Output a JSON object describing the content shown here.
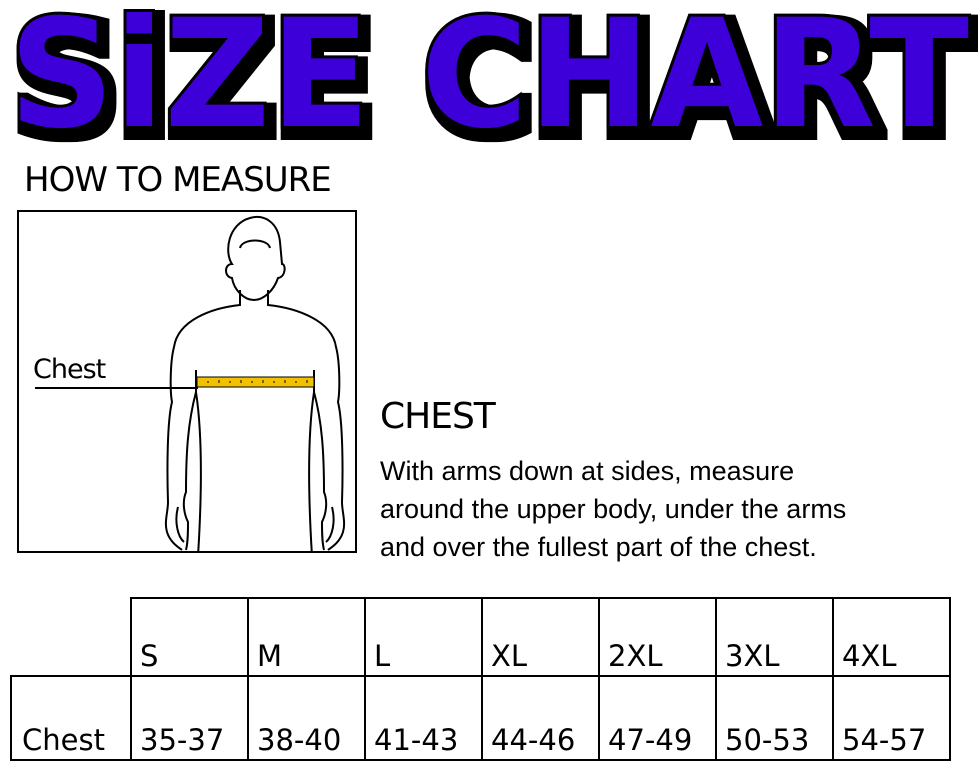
{
  "title": "SiZE CHART",
  "colors": {
    "title_fill": "#3d00d9",
    "title_outline": "#000000",
    "tape": "#f2c200"
  },
  "how_to_measure": "HOW TO MEASURE",
  "figure": {
    "label": "Chest"
  },
  "chest": {
    "heading": "CHEST",
    "description_lines": [
      "With arms down at sides, measure",
      "around the upper body, under the arms",
      "and over the fullest part of the chest."
    ]
  },
  "table": {
    "sizes": [
      "S",
      "M",
      "L",
      "XL",
      "2XL",
      "3XL",
      "4XL"
    ],
    "rows": [
      {
        "label": "Chest",
        "values": [
          "35-37",
          "38-40",
          "41-43",
          "44-46",
          "47-49",
          "50-53",
          "54-57"
        ]
      }
    ]
  }
}
